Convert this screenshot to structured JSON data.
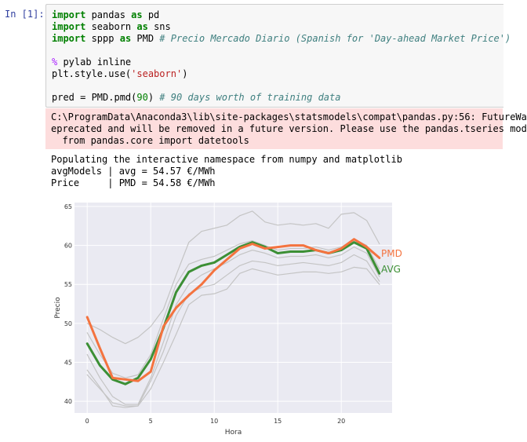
{
  "cell": {
    "prompt": "In [1]:",
    "code": [
      [
        {
          "t": "import",
          "c": "kw"
        },
        {
          "t": " pandas "
        },
        {
          "t": "as",
          "c": "kw"
        },
        {
          "t": " pd"
        }
      ],
      [
        {
          "t": "import",
          "c": "kw"
        },
        {
          "t": " seaborn "
        },
        {
          "t": "as",
          "c": "kw"
        },
        {
          "t": " sns"
        }
      ],
      [
        {
          "t": "import",
          "c": "kw"
        },
        {
          "t": " sppp "
        },
        {
          "t": "as",
          "c": "kw"
        },
        {
          "t": " PMD "
        },
        {
          "t": "# Precio Mercado Diario (Spanish for 'Day-ahead Market Price')",
          "c": "cm"
        }
      ],
      [],
      [
        {
          "t": "%",
          "c": "mg"
        },
        {
          "t": " pylab inline"
        }
      ],
      [
        {
          "t": "plt.style.use("
        },
        {
          "t": "'seaborn'",
          "c": "str"
        },
        {
          "t": ")"
        }
      ],
      [],
      [
        {
          "t": "pred = PMD.pmd("
        },
        {
          "t": "90",
          "c": "num"
        },
        {
          "t": ") "
        },
        {
          "t": "# 90 days worth of training data",
          "c": "cm"
        }
      ]
    ]
  },
  "stderr": [
    "C:\\ProgramData\\Anaconda3\\lib\\site-packages\\statsmodels\\compat\\pandas.py:56: FutureWa",
    "eprecated and will be removed in a future version. Please use the pandas.tseries mod",
    "  from pandas.core import datetools"
  ],
  "stdout": [
    "Populating the interactive namespace from numpy and matplotlib",
    "avgModels | avg = 54.57 €/MWh",
    "Price     | PMD = 54.58 €/MWh"
  ],
  "colors": {
    "pmd": "#f4733f",
    "avg": "#3c8f35",
    "grey": "#c4c4c4",
    "plot_bg": "#eaeaf2"
  },
  "chart_data": {
    "type": "line",
    "xlabel": "Hora",
    "ylabel": "Precio",
    "xlim": [
      -1,
      24
    ],
    "ylim": [
      38.5,
      65.5
    ],
    "xticks": [
      0,
      5,
      10,
      15,
      20
    ],
    "yticks": [
      40,
      45,
      50,
      55,
      60,
      65
    ],
    "x": [
      0,
      1,
      2,
      3,
      4,
      5,
      6,
      7,
      8,
      9,
      10,
      11,
      12,
      13,
      14,
      15,
      16,
      17,
      18,
      19,
      20,
      21,
      22,
      23
    ],
    "series": [
      {
        "name": "PMD",
        "role": "pmd",
        "values": [
          50.8,
          46.8,
          43.0,
          42.8,
          42.6,
          43.8,
          49.6,
          52.0,
          53.6,
          55.0,
          56.8,
          58.2,
          59.6,
          60.2,
          59.6,
          59.8,
          60.0,
          60.0,
          59.4,
          59.0,
          59.6,
          60.8,
          59.8,
          58.4
        ]
      },
      {
        "name": "AVG",
        "role": "avg",
        "values": [
          47.4,
          44.6,
          42.8,
          42.2,
          43.0,
          45.4,
          49.4,
          54.0,
          56.6,
          57.4,
          57.8,
          58.8,
          59.8,
          60.4,
          59.8,
          59.0,
          59.2,
          59.2,
          59.4,
          59.0,
          59.4,
          60.4,
          59.6,
          56.4
        ]
      },
      {
        "role": "grey",
        "values": [
          48.8,
          46.0,
          43.6,
          43.0,
          43.4,
          46.0,
          50.6,
          55.0,
          57.6,
          58.2,
          58.6,
          59.4,
          60.2,
          60.6,
          60.0,
          59.4,
          59.6,
          59.6,
          59.8,
          59.4,
          59.8,
          60.8,
          60.0,
          57.0
        ]
      },
      {
        "role": "grey",
        "values": [
          46.0,
          43.0,
          40.6,
          39.6,
          39.6,
          43.0,
          47.6,
          52.4,
          55.0,
          56.2,
          57.0,
          57.8,
          58.8,
          59.4,
          59.0,
          58.4,
          58.6,
          58.6,
          58.8,
          58.4,
          58.8,
          59.8,
          59.0,
          56.0
        ]
      },
      {
        "role": "grey",
        "values": [
          44.0,
          41.8,
          39.4,
          39.2,
          39.4,
          42.6,
          46.4,
          51.0,
          53.8,
          54.6,
          55.0,
          56.2,
          57.4,
          58.0,
          57.8,
          57.4,
          57.6,
          57.8,
          57.6,
          57.4,
          57.8,
          58.8,
          58.0,
          55.4
        ]
      },
      {
        "role": "grey",
        "values": [
          43.4,
          41.6,
          39.8,
          39.4,
          39.4,
          41.6,
          45.0,
          48.6,
          52.4,
          53.6,
          53.8,
          54.4,
          56.4,
          57.0,
          56.6,
          56.2,
          56.4,
          56.6,
          56.6,
          56.4,
          56.6,
          57.2,
          57.0,
          55.0
        ]
      },
      {
        "role": "grey",
        "values": [
          50.0,
          49.2,
          48.2,
          47.4,
          48.2,
          49.6,
          51.8,
          56.2,
          60.4,
          61.8,
          62.2,
          62.6,
          63.8,
          64.4,
          63.0,
          62.6,
          62.8,
          62.6,
          62.8,
          62.2,
          64.0,
          64.2,
          63.2,
          60.2
        ]
      }
    ],
    "legend_placement": "right-end labels"
  }
}
